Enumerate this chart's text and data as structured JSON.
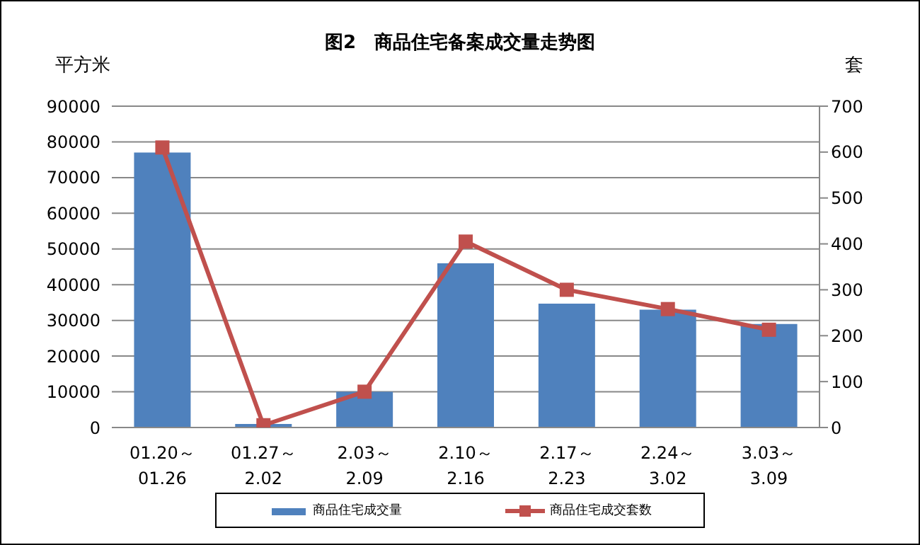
{
  "chart_data": {
    "type": "bar",
    "title": "图2　商品住宅备案成交量走势图",
    "ylabel": "平方米",
    "y2label": "套",
    "categories": [
      "01.20～\n01.26",
      "01.27～\n2.02",
      "2.03～\n2.09",
      "2.10～\n2.16",
      "2.17～\n2.23",
      "2.24～\n3.02",
      "3.03～\n3.09"
    ],
    "series": [
      {
        "name": "商品住宅成交量",
        "color": "#4f81bd",
        "values": [
          77000,
          1000,
          10000,
          46000,
          34700,
          33000,
          29000
        ]
      },
      {
        "name": "商品住宅成交套数",
        "type": "line",
        "axis": "y2",
        "color": "#c0504d",
        "marker": "square",
        "values": [
          610,
          5,
          78,
          405,
          300,
          258,
          213
        ]
      }
    ],
    "ylim": [
      0,
      90000
    ],
    "yticks": [
      0,
      10000,
      20000,
      30000,
      40000,
      50000,
      60000,
      70000,
      80000,
      90000
    ],
    "y2lim": [
      0,
      700
    ],
    "y2ticks": [
      0,
      100,
      200,
      300,
      400,
      500,
      600,
      700
    ],
    "grid": "y",
    "legend": "bottom"
  }
}
